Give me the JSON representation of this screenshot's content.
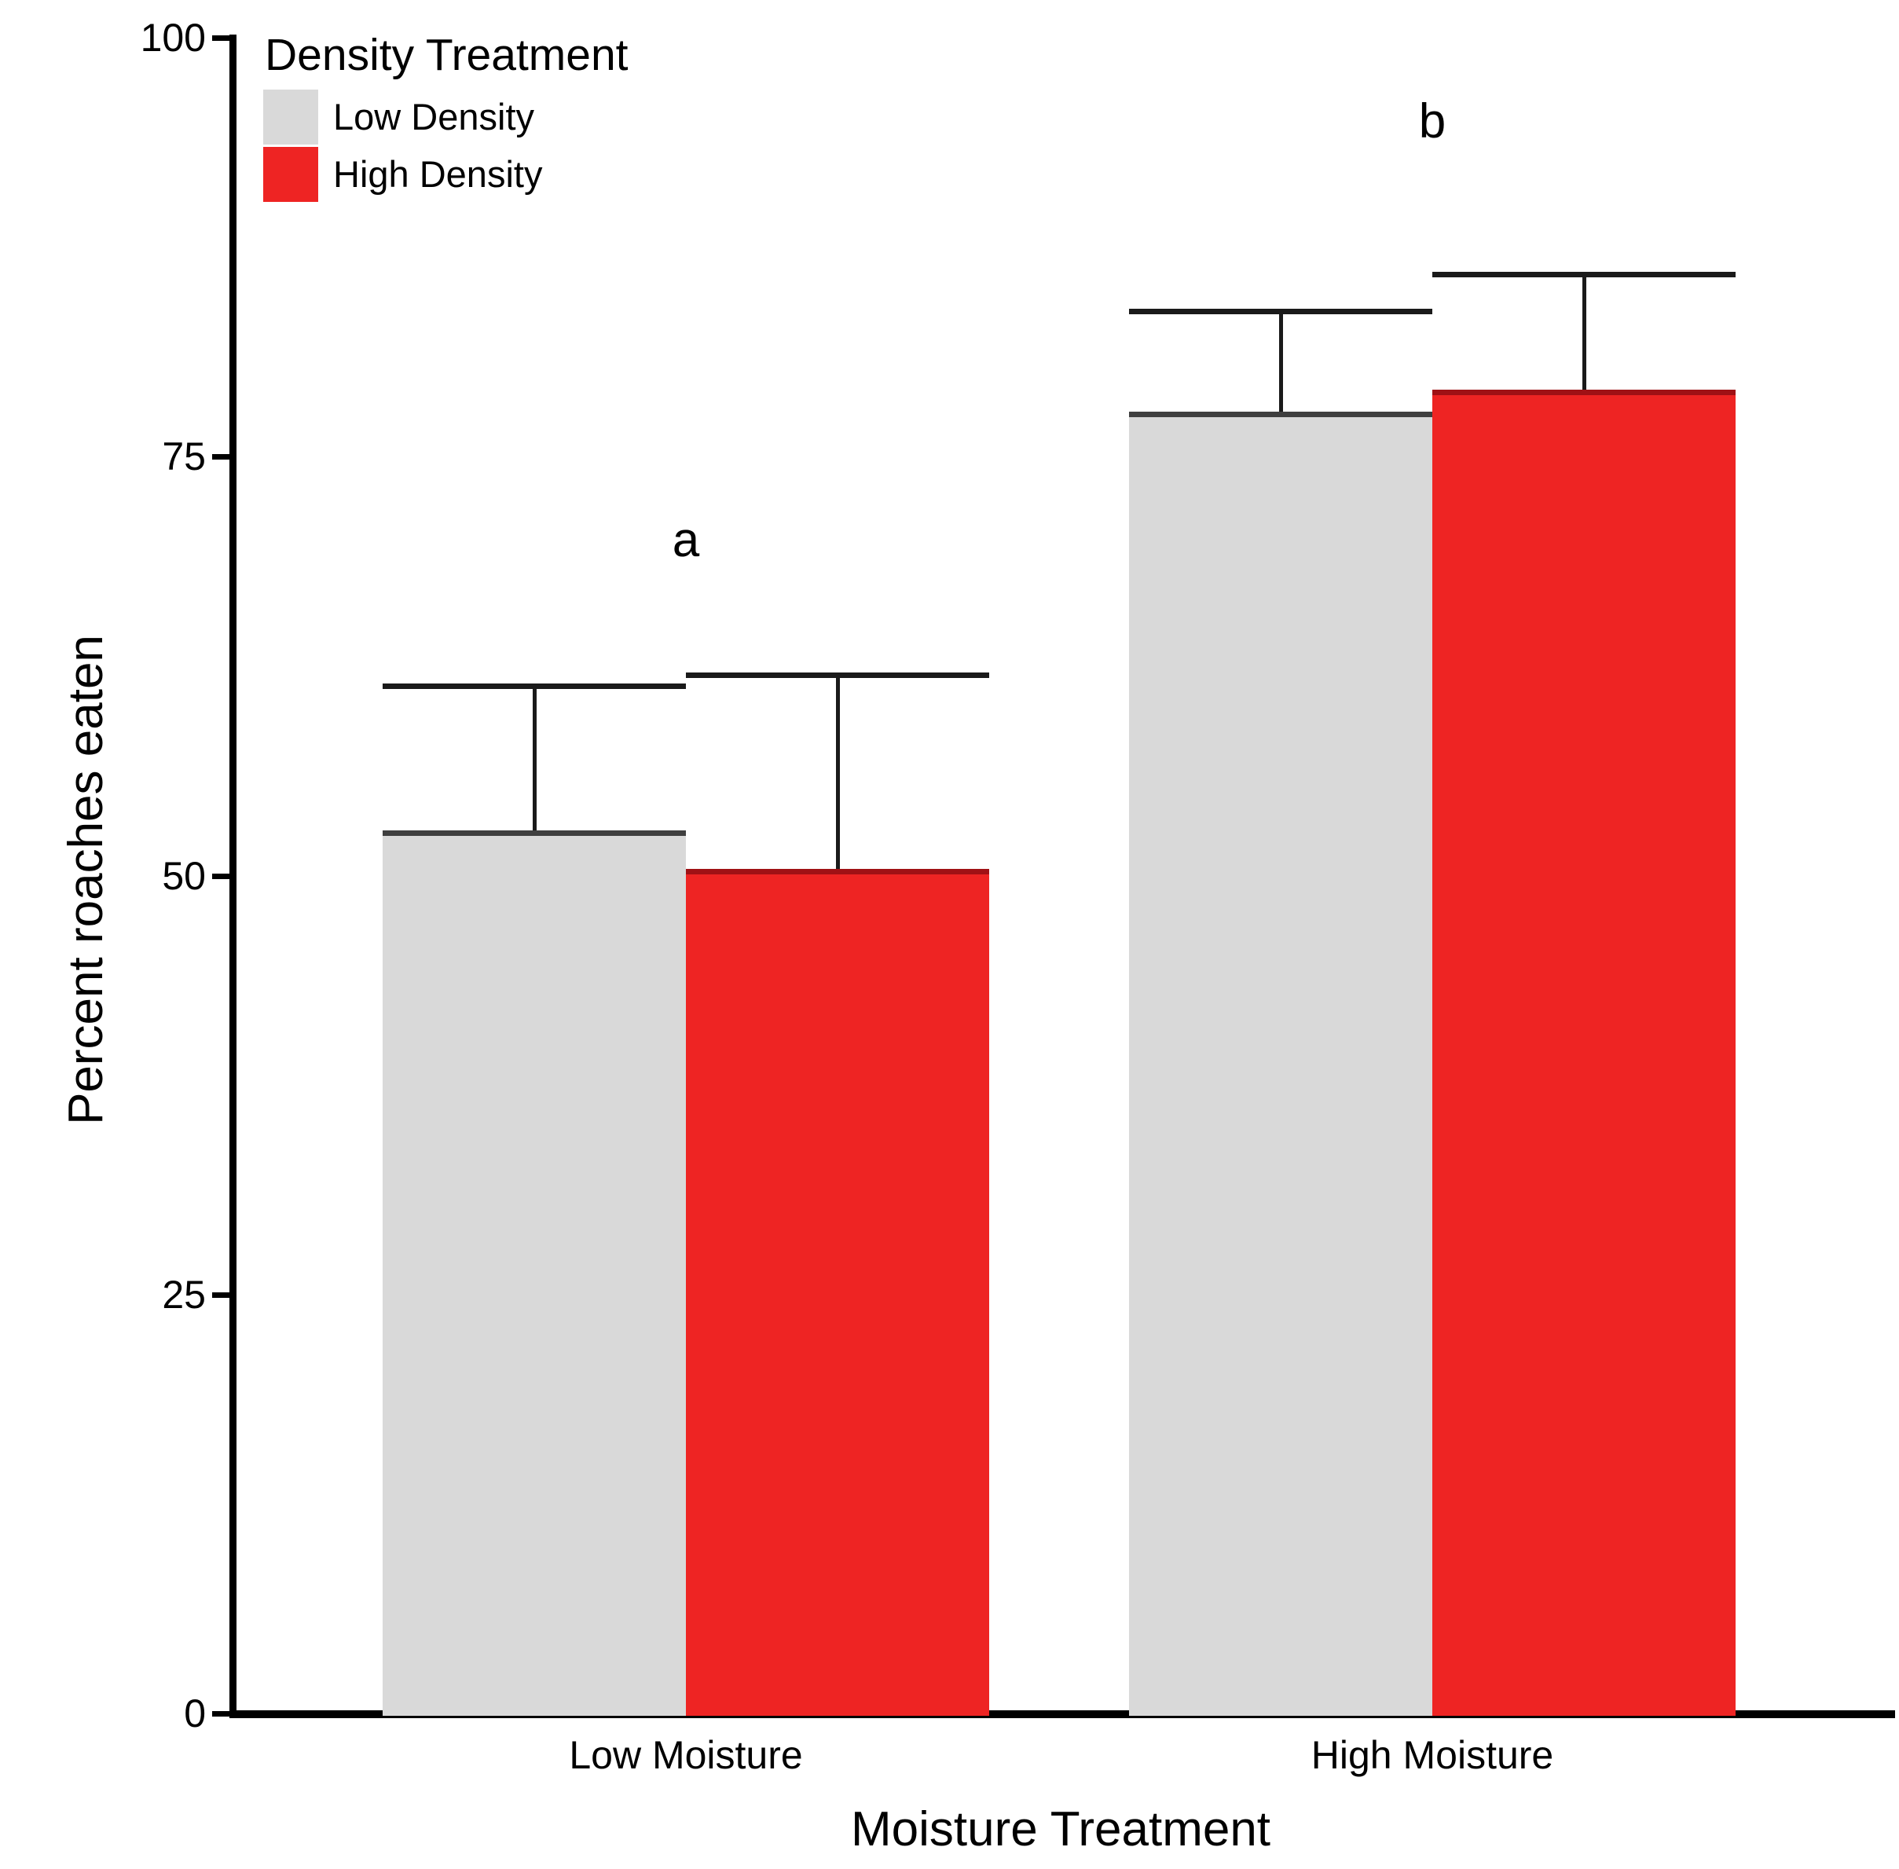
{
  "chart_data": {
    "type": "bar",
    "title": "",
    "xlabel": "Moisture Treatment",
    "ylabel": "Percent roaches eaten",
    "ylim": [
      0,
      100
    ],
    "yticks": [
      0,
      25,
      50,
      75,
      100
    ],
    "ytick_labels": [
      "0",
      "25",
      "50",
      "75",
      "100"
    ],
    "categories": [
      "Low Moisture",
      "High Moisture"
    ],
    "grid": false,
    "legend_position": "top-left",
    "legend_title": "Density Treatment",
    "series": [
      {
        "name": "Low Density",
        "fill": "#D9D9D9",
        "border": "#3F3F3F",
        "values": [
          52.7,
          77.7
        ],
        "error_upper": [
          61.3,
          83.7
        ]
      },
      {
        "name": "High Density",
        "fill": "#EE2423",
        "border": "#A01115",
        "values": [
          50.4,
          79.0
        ],
        "error_upper": [
          62.0,
          85.9
        ]
      }
    ],
    "significance_labels": [
      {
        "text": "a",
        "category": "Low Moisture",
        "y": 70
      },
      {
        "text": "b",
        "category": "High Moisture",
        "y": 95
      }
    ],
    "colors": {
      "axis": "#000000",
      "error_bar": "#1A1A1A",
      "text": "#000000",
      "background": "#FFFFFF"
    }
  }
}
